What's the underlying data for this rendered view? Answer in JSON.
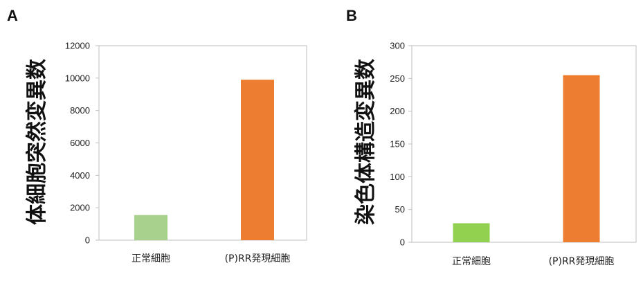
{
  "chart_data": [
    {
      "panel": "A",
      "type": "bar",
      "ylabel": "体細胞突然変異数",
      "xlabel": "",
      "categories": [
        "正常細胞",
        "(P)RR発現細胞"
      ],
      "values": [
        1550,
        9900
      ],
      "colors": [
        "#a9d18e",
        "#ed7d31"
      ],
      "ylim": [
        0,
        12000
      ],
      "yticks": [
        "0",
        "2000",
        "4000",
        "6000",
        "8000",
        "10000",
        "12000"
      ],
      "grid": false,
      "legend": "none"
    },
    {
      "panel": "B",
      "type": "bar",
      "ylabel": "染色体構造変異数",
      "xlabel": "",
      "categories": [
        "正常細胞",
        "(P)RR発現細胞"
      ],
      "values": [
        29,
        255
      ],
      "colors": [
        "#92d050",
        "#ed7d31"
      ],
      "ylim": [
        0,
        300
      ],
      "yticks": [
        "0",
        "50",
        "100",
        "150",
        "200",
        "250",
        "300"
      ],
      "grid": false,
      "legend": "none"
    }
  ]
}
